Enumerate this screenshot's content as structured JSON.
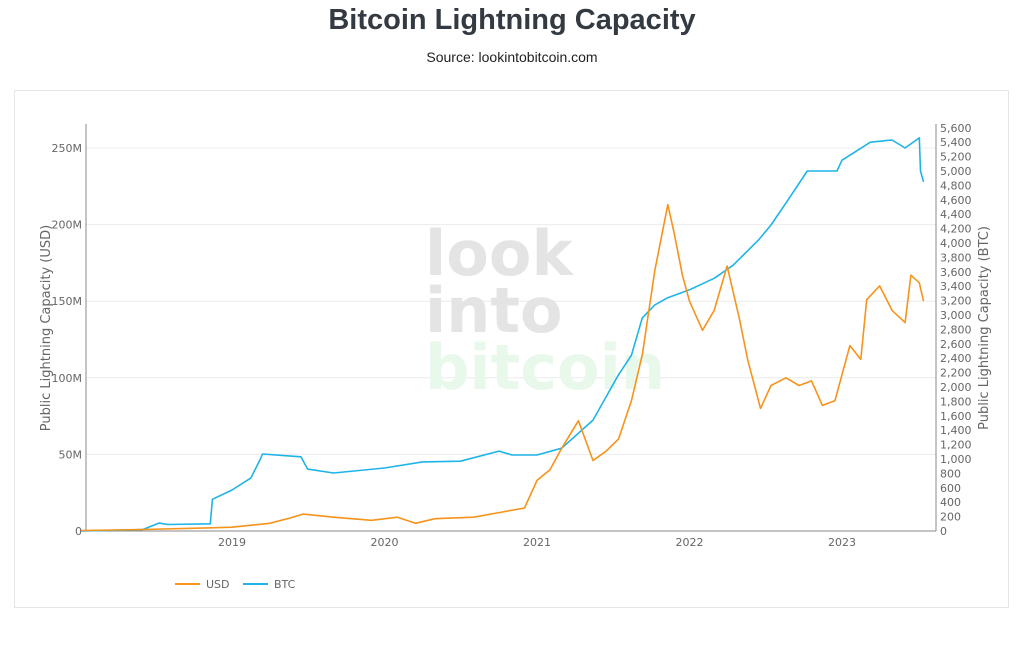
{
  "header": {
    "title": "Bitcoin Lightning Capacity",
    "subtitle": "Source: lookintobitcoin.com"
  },
  "watermark": [
    "look",
    "into",
    "bitcoin"
  ],
  "chart_data": {
    "type": "line",
    "title": "Bitcoin Lightning Capacity",
    "xlabel": "",
    "ylabel": "Public Lightning Capacity (USD)",
    "y2label": "Public Lightning Capacity (BTC)",
    "xlim": [
      "2018-01",
      "2023-07"
    ],
    "ylim": [
      0,
      265000000
    ],
    "y2lim": [
      0,
      5650
    ],
    "xticks": [
      "2019",
      "2020",
      "2021",
      "2022",
      "2023"
    ],
    "yticks": [
      "0",
      "50M",
      "100M",
      "150M",
      "200M",
      "250M"
    ],
    "y2ticks": [
      "0",
      "200",
      "400",
      "600",
      "800",
      "1,000",
      "1,200",
      "1,400",
      "1,600",
      "1,800",
      "2,000",
      "2,200",
      "2,400",
      "2,600",
      "2,800",
      "3,000",
      "3,200",
      "3,400",
      "3,600",
      "3,800",
      "4,000",
      "4,200",
      "4,400",
      "4,600",
      "4,800",
      "5,000",
      "5,200",
      "5,400",
      "5,600"
    ],
    "grid": true,
    "legend": "bottom-left",
    "series": [
      {
        "name": "USD",
        "axis": "left",
        "color": "#f7931a",
        "unit": "USD (millions)",
        "points": [
          [
            "2018-01-05",
            0.3
          ],
          [
            "2018-06-01",
            1
          ],
          [
            "2018-11-01",
            2
          ],
          [
            "2019-01-01",
            2.5
          ],
          [
            "2019-04-01",
            5
          ],
          [
            "2019-05-20",
            8.5
          ],
          [
            "2019-06-20",
            11
          ],
          [
            "2019-09-01",
            9
          ],
          [
            "2019-12-01",
            7
          ],
          [
            "2020-02-01",
            9
          ],
          [
            "2020-03-15",
            5
          ],
          [
            "2020-05-01",
            8
          ],
          [
            "2020-08-01",
            9
          ],
          [
            "2020-10-01",
            12
          ],
          [
            "2020-12-01",
            15
          ],
          [
            "2021-01-01",
            33
          ],
          [
            "2021-02-01",
            40
          ],
          [
            "2021-03-01",
            54
          ],
          [
            "2021-04-10",
            72
          ],
          [
            "2021-05-15",
            46
          ],
          [
            "2021-06-15",
            52
          ],
          [
            "2021-07-15",
            60
          ],
          [
            "2021-08-15",
            85
          ],
          [
            "2021-09-10",
            115
          ],
          [
            "2021-10-10",
            170
          ],
          [
            "2021-11-10",
            213
          ],
          [
            "2021-11-25",
            195
          ],
          [
            "2021-12-15",
            167
          ],
          [
            "2022-01-01",
            150
          ],
          [
            "2022-02-01",
            131
          ],
          [
            "2022-03-01",
            144
          ],
          [
            "2022-04-01",
            173
          ],
          [
            "2022-05-01",
            138
          ],
          [
            "2022-05-20",
            112
          ],
          [
            "2022-06-20",
            80
          ],
          [
            "2022-07-15",
            95
          ],
          [
            "2022-08-20",
            100
          ],
          [
            "2022-09-20",
            95
          ],
          [
            "2022-10-20",
            98
          ],
          [
            "2022-11-15",
            82
          ],
          [
            "2022-12-15",
            85
          ],
          [
            "2023-01-20",
            121
          ],
          [
            "2023-02-15",
            112
          ],
          [
            "2023-03-01",
            151
          ],
          [
            "2023-04-01",
            160
          ],
          [
            "2023-05-01",
            144
          ],
          [
            "2023-06-01",
            136
          ],
          [
            "2023-06-15",
            167
          ],
          [
            "2023-07-05",
            162
          ],
          [
            "2023-07-15",
            150
          ]
        ]
      },
      {
        "name": "BTC",
        "axis": "right",
        "color": "#1eb4e8",
        "unit": "BTC",
        "points": [
          [
            "2018-01-05",
            0
          ],
          [
            "2018-06-01",
            20
          ],
          [
            "2018-07-10",
            110
          ],
          [
            "2018-08-01",
            90
          ],
          [
            "2018-11-10",
            100
          ],
          [
            "2018-11-15",
            440
          ],
          [
            "2019-01-01",
            570
          ],
          [
            "2019-02-15",
            735
          ],
          [
            "2019-03-10",
            1000
          ],
          [
            "2019-03-15",
            1070
          ],
          [
            "2019-05-01",
            1050
          ],
          [
            "2019-06-15",
            1030
          ],
          [
            "2019-07-01",
            860
          ],
          [
            "2019-09-01",
            805
          ],
          [
            "2020-01-01",
            875
          ],
          [
            "2020-04-01",
            960
          ],
          [
            "2020-07-01",
            970
          ],
          [
            "2020-10-01",
            1110
          ],
          [
            "2020-11-01",
            1055
          ],
          [
            "2021-01-01",
            1055
          ],
          [
            "2021-03-01",
            1150
          ],
          [
            "2021-05-15",
            1540
          ],
          [
            "2021-07-15",
            2170
          ],
          [
            "2021-08-15",
            2440
          ],
          [
            "2021-09-10",
            2960
          ],
          [
            "2021-10-10",
            3140
          ],
          [
            "2021-11-10",
            3240
          ],
          [
            "2022-01-01",
            3350
          ],
          [
            "2022-03-01",
            3510
          ],
          [
            "2022-04-15",
            3690
          ],
          [
            "2022-06-15",
            4040
          ],
          [
            "2022-07-15",
            4250
          ],
          [
            "2022-08-25",
            4600
          ],
          [
            "2022-10-10",
            5000
          ],
          [
            "2022-12-20",
            5000
          ],
          [
            "2023-01-01",
            5150
          ],
          [
            "2023-03-10",
            5400
          ],
          [
            "2023-05-01",
            5430
          ],
          [
            "2023-06-01",
            5320
          ],
          [
            "2023-07-05",
            5460
          ],
          [
            "2023-07-08",
            5000
          ],
          [
            "2023-07-15",
            4850
          ]
        ]
      }
    ]
  }
}
